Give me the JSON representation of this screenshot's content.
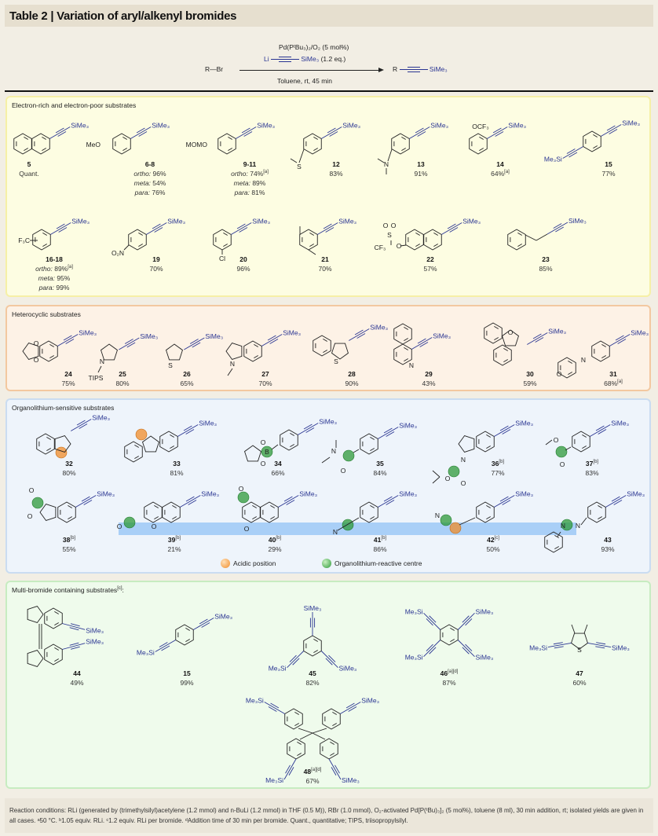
{
  "title": "Table 2 | Variation of aryl/alkenyl bromides",
  "scheme": {
    "reactant": "R—Br",
    "reagent_catalyst": "Pd(PᵗBu₃)₂/O₂ (5 mol%)",
    "reagent_li": "Li",
    "reagent_tms": "SiMe₃",
    "reagent_eq": "(1.2 eq.)",
    "conditions": "Toluene, rt, 45 min",
    "product_r": "R",
    "product_tms": "SiMe₃"
  },
  "tms_right": "SiMe₃",
  "tms_left": "Me₃Si",
  "colors": {
    "alkyne": "#2a3592",
    "acidic": "#f08c2a",
    "reactive": "#2e9a3a",
    "band": "#a9cff7"
  },
  "sections": [
    {
      "title": "Electron-rich and electron-poor substrates",
      "title_note": "",
      "compounds": [
        {
          "id": "5",
          "note": "",
          "yields": [
            {
              "pre": "",
              "val": "Quant.",
              "note": ""
            }
          ],
          "subst": []
        },
        {
          "id": "6-8",
          "note": "",
          "yields": [
            {
              "pre": "ortho",
              "val": "96%",
              "note": ""
            },
            {
              "pre": "meta",
              "val": "54%",
              "note": ""
            },
            {
              "pre": "para",
              "val": "76%",
              "note": ""
            }
          ],
          "subst": [
            "MeO"
          ]
        },
        {
          "id": "9-11",
          "note": "",
          "yields": [
            {
              "pre": "ortho",
              "val": "74%",
              "note": "[a]"
            },
            {
              "pre": "meta",
              "val": "89%",
              "note": ""
            },
            {
              "pre": "para",
              "val": "81%",
              "note": ""
            }
          ],
          "subst": [
            "MOMO"
          ]
        },
        {
          "id": "12",
          "note": "",
          "yields": [
            {
              "pre": "",
              "val": "83%",
              "note": ""
            }
          ],
          "subst": [
            "S"
          ]
        },
        {
          "id": "13",
          "note": "",
          "yields": [
            {
              "pre": "",
              "val": "91%",
              "note": ""
            }
          ],
          "subst": [
            "N"
          ]
        },
        {
          "id": "14",
          "note": "",
          "yields": [
            {
              "pre": "",
              "val": "64%",
              "note": "[a]"
            }
          ],
          "subst": [
            "OCF₃"
          ]
        },
        {
          "id": "15",
          "note": "",
          "yields": [
            {
              "pre": "",
              "val": "77%",
              "note": ""
            }
          ],
          "subst": []
        },
        {
          "id": "16-18",
          "note": "",
          "yields": [
            {
              "pre": "ortho",
              "val": "89%",
              "note": "[a]"
            },
            {
              "pre": "meta",
              "val": "95%",
              "note": ""
            },
            {
              "pre": "para",
              "val": "99%",
              "note": ""
            }
          ],
          "subst": [
            "F₃C"
          ]
        },
        {
          "id": "19",
          "note": "",
          "yields": [
            {
              "pre": "",
              "val": "70%",
              "note": ""
            }
          ],
          "subst": [
            "O₂N"
          ]
        },
        {
          "id": "20",
          "note": "",
          "yields": [
            {
              "pre": "",
              "val": "96%",
              "note": ""
            }
          ],
          "subst": [
            "Cl"
          ]
        },
        {
          "id": "21",
          "note": "",
          "yields": [
            {
              "pre": "",
              "val": "70%",
              "note": ""
            }
          ],
          "subst": []
        },
        {
          "id": "22",
          "note": "",
          "yields": [
            {
              "pre": "",
              "val": "57%",
              "note": ""
            }
          ],
          "subst": [
            "O",
            "O",
            "S",
            "CF₃",
            "O"
          ]
        },
        {
          "id": "23",
          "note": "",
          "yields": [
            {
              "pre": "",
              "val": "85%",
              "note": ""
            }
          ],
          "subst": []
        }
      ]
    },
    {
      "title": "Heterocyclic substrates",
      "title_note": "",
      "compounds": [
        {
          "id": "24",
          "note": "",
          "yields": [
            {
              "pre": "",
              "val": "75%",
              "note": ""
            }
          ],
          "subst": [
            "O",
            "O"
          ]
        },
        {
          "id": "25",
          "note": "",
          "yields": [
            {
              "pre": "",
              "val": "80%",
              "note": ""
            }
          ],
          "subst": [
            "N",
            "TIPS"
          ]
        },
        {
          "id": "26",
          "note": "",
          "yields": [
            {
              "pre": "",
              "val": "65%",
              "note": ""
            }
          ],
          "subst": [
            "S"
          ]
        },
        {
          "id": "27",
          "note": "",
          "yields": [
            {
              "pre": "",
              "val": "70%",
              "note": ""
            }
          ],
          "subst": [
            "N"
          ]
        },
        {
          "id": "28",
          "note": "",
          "yields": [
            {
              "pre": "",
              "val": "90%",
              "note": ""
            }
          ],
          "subst": [
            "S"
          ]
        },
        {
          "id": "29",
          "note": "",
          "yields": [
            {
              "pre": "",
              "val": "43%",
              "note": ""
            }
          ],
          "subst": [
            "N"
          ]
        },
        {
          "id": "30",
          "note": "",
          "yields": [
            {
              "pre": "",
              "val": "59%",
              "note": ""
            }
          ],
          "subst": [
            "O"
          ]
        },
        {
          "id": "31",
          "note": "",
          "yields": [
            {
              "pre": "",
              "val": "68%",
              "note": "[a]"
            }
          ],
          "subst": [
            "N",
            "O"
          ]
        }
      ]
    },
    {
      "title": "Organolithium-sensitive substrates",
      "title_note": "",
      "compounds": [
        {
          "id": "32",
          "note": "",
          "yields": [
            {
              "pre": "",
              "val": "80%",
              "note": ""
            }
          ],
          "subst": []
        },
        {
          "id": "33",
          "note": "",
          "yields": [
            {
              "pre": "",
              "val": "81%",
              "note": ""
            }
          ],
          "subst": []
        },
        {
          "id": "34",
          "note": "",
          "yields": [
            {
              "pre": "",
              "val": "66%",
              "note": ""
            }
          ],
          "subst": [
            "B",
            "O",
            "O"
          ]
        },
        {
          "id": "35",
          "note": "",
          "yields": [
            {
              "pre": "",
              "val": "84%",
              "note": ""
            }
          ],
          "subst": [
            "N",
            "O"
          ]
        },
        {
          "id": "36",
          "note": "[b]",
          "yields": [
            {
              "pre": "",
              "val": "77%",
              "note": ""
            }
          ],
          "subst": [
            "N",
            "O",
            "O"
          ]
        },
        {
          "id": "37",
          "note": "[b]",
          "yields": [
            {
              "pre": "",
              "val": "83%",
              "note": ""
            }
          ],
          "subst": [
            "O",
            "O"
          ]
        },
        {
          "id": "38",
          "note": "[b]",
          "yields": [
            {
              "pre": "",
              "val": "55%",
              "note": ""
            }
          ],
          "subst": [
            "O",
            "O"
          ]
        },
        {
          "id": "39",
          "note": "[b]",
          "yields": [
            {
              "pre": "",
              "val": "21%",
              "note": ""
            }
          ],
          "subst": [
            "O",
            "O"
          ]
        },
        {
          "id": "40",
          "note": "[b]",
          "yields": [
            {
              "pre": "",
              "val": "29%",
              "note": ""
            }
          ],
          "subst": [
            "O",
            "O"
          ]
        },
        {
          "id": "41",
          "note": "[b]",
          "yields": [
            {
              "pre": "",
              "val": "86%",
              "note": ""
            }
          ],
          "subst": [
            "N"
          ]
        },
        {
          "id": "42",
          "note": "[c]",
          "yields": [
            {
              "pre": "",
              "val": "50%",
              "note": ""
            }
          ],
          "subst": [
            "N"
          ]
        },
        {
          "id": "43",
          "note": "",
          "yields": [
            {
              "pre": "",
              "val": "93%",
              "note": ""
            }
          ],
          "subst": [
            "N",
            "N"
          ]
        }
      ]
    },
    {
      "title": "Multi-bromide containing substrates",
      "title_note": "[c]",
      "title_suffix": ":",
      "compounds": [
        {
          "id": "44",
          "note": "",
          "yields": [
            {
              "pre": "",
              "val": "49%",
              "note": ""
            }
          ],
          "subst": []
        },
        {
          "id": "15",
          "note": "",
          "yields": [
            {
              "pre": "",
              "val": "99%",
              "note": ""
            }
          ],
          "subst": []
        },
        {
          "id": "45",
          "note": "",
          "yields": [
            {
              "pre": "",
              "val": "82%",
              "note": ""
            }
          ],
          "subst": []
        },
        {
          "id": "46",
          "note": "[a][d]",
          "yields": [
            {
              "pre": "",
              "val": "87%",
              "note": ""
            }
          ],
          "subst": []
        },
        {
          "id": "47",
          "note": "",
          "yields": [
            {
              "pre": "",
              "val": "60%",
              "note": ""
            }
          ],
          "subst": [
            "S"
          ]
        },
        {
          "id": "48",
          "note": "[a][d]",
          "yields": [
            {
              "pre": "",
              "val": "67%",
              "note": ""
            }
          ],
          "subst": []
        }
      ]
    }
  ],
  "legend": {
    "acidic": "Acidic position",
    "reactive": "Organolithium-reactive centre"
  },
  "footnote": "Reaction conditions: RLi (generated by (trimethylsilyl)acetylene (1.2 mmol) and n-BuLi (1.2 mmol) in THF (0.5 M)), RBr (1.0 mmol), O₂-activated Pd[P(ᵗBu)₃]₂ (5 mol%), toluene (8 ml), 30 min addition, rt; isolated yields are given in all cases. ᵃ50 °C. ᵇ1.05 equiv. RLi. ᶜ1.2 equiv. RLi per bromide. ᵈAddition time of 30 min per bromide. Quant., quantitative; TIPS, triisopropylsilyl."
}
